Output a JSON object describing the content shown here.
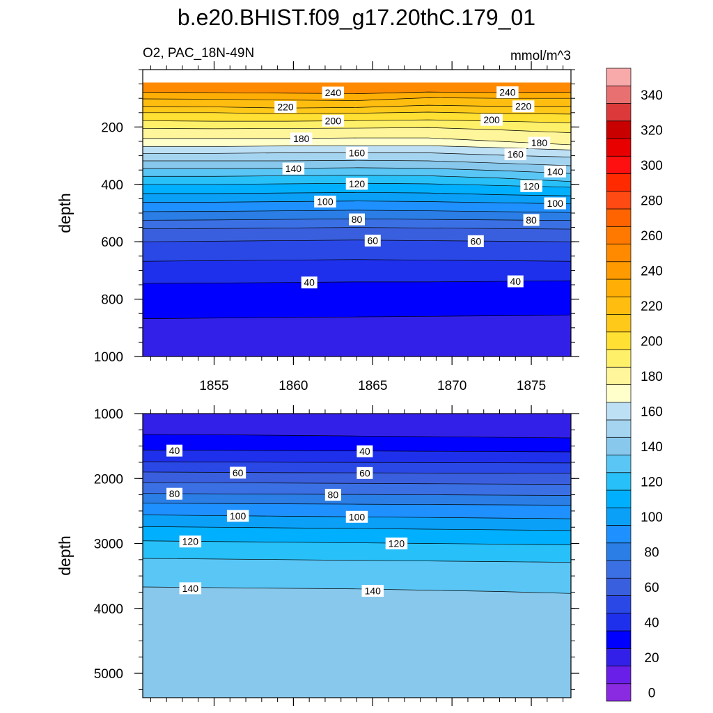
{
  "chart_data": {
    "type": "contour",
    "title": "b.e20.BHIST.f09_g17.20thC.179_01",
    "subtitle_left": "O2, PAC_18N-49N",
    "subtitle_right": "mmol/m^3",
    "colorbar": {
      "levels": [
        0,
        10,
        20,
        30,
        40,
        50,
        60,
        70,
        80,
        90,
        100,
        110,
        120,
        130,
        140,
        150,
        160,
        170,
        180,
        190,
        200,
        210,
        220,
        230,
        240,
        250,
        260,
        270,
        280,
        290,
        300,
        310,
        320,
        330,
        340,
        350
      ],
      "tick_labels": [
        "0",
        "20",
        "40",
        "60",
        "80",
        "100",
        "120",
        "140",
        "160",
        "180",
        "200",
        "220",
        "240",
        "260",
        "280",
        "300",
        "320",
        "340"
      ],
      "colors": [
        "#8a2be2",
        "#6a1fe8",
        "#3320e8",
        "#0000ff",
        "#1e30ec",
        "#2a48e6",
        "#3a5fde",
        "#3b70e4",
        "#2a7ee6",
        "#1e90ff",
        "#0aa0f8",
        "#00b0ff",
        "#28c0f8",
        "#5ac6f6",
        "#87c8ec",
        "#a4d4f0",
        "#bee0f4",
        "#ffffcc",
        "#fff59a",
        "#fff06a",
        "#ffe033",
        "#ffc91a",
        "#ffbe0f",
        "#ffae05",
        "#ff9a00",
        "#ff8a00",
        "#ff7800",
        "#ff6400",
        "#ff4a14",
        "#ff2a00",
        "#ff1010",
        "#e80000",
        "#c80000",
        "#dc3a3a",
        "#e87070",
        "#f8aaaa"
      ]
    },
    "panels": [
      {
        "ylabel": "depth",
        "yrange": [
          0,
          1000
        ],
        "ytick_labels": [
          "200",
          "400",
          "600",
          "800",
          "1000"
        ],
        "yticks": [
          200,
          400,
          600,
          800,
          1000
        ],
        "xrange": [
          1850.5,
          1877.5
        ],
        "xtick_labels": [
          "1855",
          "1860",
          "1865",
          "1870",
          "1875"
        ],
        "xticks": [
          1855,
          1860,
          1865,
          1870,
          1875
        ],
        "data_top_depth": 45,
        "surface_value": 250,
        "contours": [
          {
            "v": 240,
            "d": [
              79,
              80,
              82,
              84,
              78,
              80,
              79
            ]
          },
          {
            "v": 230,
            "d": [
              102,
              103,
              106,
              108,
              98,
              100,
              100
            ]
          },
          {
            "v": 220,
            "d": [
              128,
              130,
              134,
              132,
              124,
              128,
              128
            ]
          },
          {
            "v": 210,
            "d": [
              150,
              150,
              154,
              152,
              148,
              153,
              155
            ]
          },
          {
            "v": 200,
            "d": [
              178,
              180,
              180,
              178,
              175,
              180,
              185
            ]
          },
          {
            "v": 190,
            "d": [
              205,
              206,
              205,
              204,
              202,
              210,
              220
            ]
          },
          {
            "v": 180,
            "d": [
              240,
              240,
              240,
              238,
              238,
              250,
              262
            ]
          },
          {
            "v": 170,
            "d": [
              268,
              268,
              266,
              265,
              265,
              272,
              280
            ]
          },
          {
            "v": 160,
            "d": [
              292,
              292,
              290,
              290,
              290,
              298,
              305
            ]
          },
          {
            "v": 150,
            "d": [
              318,
              318,
              318,
              316,
              318,
              326,
              335
            ]
          },
          {
            "v": 140,
            "d": [
              345,
              345,
              344,
              342,
              344,
              352,
              362
            ]
          },
          {
            "v": 130,
            "d": [
              372,
              372,
              370,
              368,
              370,
              378,
              390
            ]
          },
          {
            "v": 120,
            "d": [
              400,
              400,
              398,
              396,
              398,
              404,
              410
            ]
          },
          {
            "v": 110,
            "d": [
              432,
              432,
              430,
              428,
              430,
              436,
              440
            ]
          },
          {
            "v": 100,
            "d": [
              462,
              462,
              460,
              458,
              460,
              464,
              468
            ]
          },
          {
            "v": 90,
            "d": [
              495,
              494,
              492,
              490,
              492,
              495,
              498
            ]
          },
          {
            "v": 80,
            "d": [
              525,
              524,
              522,
              520,
              522,
              524,
              526
            ]
          },
          {
            "v": 70,
            "d": [
              555,
              554,
              552,
              550,
              552,
              554,
              556
            ]
          },
          {
            "v": 60,
            "d": [
              600,
              598,
              596,
              594,
              596,
              598,
              600
            ]
          },
          {
            "v": 50,
            "d": [
              668,
              666,
              664,
              662,
              664,
              666,
              668
            ]
          },
          {
            "v": 40,
            "d": [
              745,
              744,
              742,
              740,
              740,
              738,
              736
            ]
          },
          {
            "v": 30,
            "d": [
              868,
              866,
              864,
              862,
              860,
              858,
              856
            ]
          }
        ],
        "labels": [
          {
            "t": "240",
            "x": 1862.5,
            "d": 80
          },
          {
            "t": "240",
            "x": 1873.5,
            "d": 79
          },
          {
            "t": "220",
            "x": 1859.5,
            "d": 130
          },
          {
            "t": "220",
            "x": 1874.5,
            "d": 128
          },
          {
            "t": "200",
            "x": 1862.5,
            "d": 178
          },
          {
            "t": "200",
            "x": 1872.5,
            "d": 175
          },
          {
            "t": "180",
            "x": 1860.5,
            "d": 240
          },
          {
            "t": "180",
            "x": 1875.5,
            "d": 255
          },
          {
            "t": "160",
            "x": 1864.0,
            "d": 290
          },
          {
            "t": "160",
            "x": 1874.0,
            "d": 295
          },
          {
            "t": "140",
            "x": 1860.0,
            "d": 345
          },
          {
            "t": "140",
            "x": 1876.5,
            "d": 355
          },
          {
            "t": "120",
            "x": 1864.0,
            "d": 398
          },
          {
            "t": "120",
            "x": 1875.0,
            "d": 406
          },
          {
            "t": "100",
            "x": 1862.0,
            "d": 460
          },
          {
            "t": "100",
            "x": 1876.5,
            "d": 466
          },
          {
            "t": "80",
            "x": 1864.0,
            "d": 522
          },
          {
            "t": "80",
            "x": 1875.0,
            "d": 524
          },
          {
            "t": "60",
            "x": 1865.0,
            "d": 596
          },
          {
            "t": "60",
            "x": 1871.5,
            "d": 598
          },
          {
            "t": "40",
            "x": 1861.0,
            "d": 742
          },
          {
            "t": "40",
            "x": 1874.0,
            "d": 738
          }
        ]
      },
      {
        "ylabel": "depth",
        "yrange": [
          1000,
          5375
        ],
        "ytick_labels": [
          "1000",
          "2000",
          "3000",
          "4000",
          "5000"
        ],
        "yticks": [
          1000,
          2000,
          3000,
          4000,
          5000
        ],
        "xrange": [
          1850.5,
          1877.5
        ],
        "xticks": [
          1855,
          1860,
          1865,
          1870,
          1875
        ],
        "surface_value": 25,
        "contours": [
          {
            "v": 30,
            "d": [
              1320,
              1325,
              1335,
              1345,
              1355,
              1365,
              1375
            ]
          },
          {
            "v": 40,
            "d": [
              1560,
              1565,
              1570,
              1575,
              1580,
              1585,
              1590
            ]
          },
          {
            "v": 50,
            "d": [
              1740,
              1745,
              1750,
              1752,
              1755,
              1758,
              1760
            ]
          },
          {
            "v": 60,
            "d": [
              1900,
              1905,
              1910,
              1912,
              1915,
              1918,
              1920
            ]
          },
          {
            "v": 70,
            "d": [
              2060,
              2065,
              2070,
              2075,
              2080,
              2085,
              2090
            ]
          },
          {
            "v": 80,
            "d": [
              2230,
              2235,
              2240,
              2245,
              2250,
              2255,
              2260
            ]
          },
          {
            "v": 90,
            "d": [
              2380,
              2385,
              2390,
              2395,
              2400,
              2405,
              2410
            ]
          },
          {
            "v": 100,
            "d": [
              2560,
              2570,
              2580,
              2590,
              2600,
              2610,
              2620
            ]
          },
          {
            "v": 110,
            "d": [
              2740,
              2750,
              2760,
              2770,
              2780,
              2790,
              2800
            ]
          },
          {
            "v": 120,
            "d": [
              2960,
              2970,
              2980,
              2990,
              3000,
              3010,
              3020
            ]
          },
          {
            "v": 130,
            "d": [
              3230,
              3240,
              3250,
              3260,
              3270,
              3280,
              3290
            ]
          },
          {
            "v": 140,
            "d": [
              3670,
              3680,
              3690,
              3700,
              3720,
              3740,
              3770
            ]
          }
        ],
        "labels": [
          {
            "t": "40",
            "x": 1852.5,
            "d": 1570
          },
          {
            "t": "40",
            "x": 1864.5,
            "d": 1580
          },
          {
            "t": "60",
            "x": 1856.5,
            "d": 1910
          },
          {
            "t": "60",
            "x": 1864.5,
            "d": 1915
          },
          {
            "t": "80",
            "x": 1852.5,
            "d": 2235
          },
          {
            "t": "80",
            "x": 1862.5,
            "d": 2250
          },
          {
            "t": "100",
            "x": 1856.5,
            "d": 2575
          },
          {
            "t": "100",
            "x": 1864.0,
            "d": 2590
          },
          {
            "t": "120",
            "x": 1853.5,
            "d": 2970
          },
          {
            "t": "120",
            "x": 1866.5,
            "d": 3000
          },
          {
            "t": "140",
            "x": 1853.5,
            "d": 3690
          },
          {
            "t": "140",
            "x": 1865.0,
            "d": 3730
          }
        ]
      }
    ]
  }
}
